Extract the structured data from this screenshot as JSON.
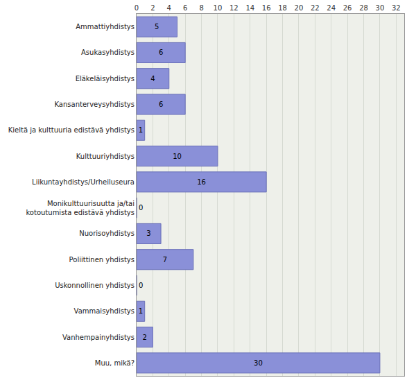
{
  "chart_data": {
    "type": "bar",
    "orientation": "horizontal",
    "categories": [
      "Ammattiyhdistys",
      "Asukasyhdistys",
      "Eläkeläisyhdistys",
      "Kansanterveysyhdistys",
      "Kieltä ja kulttuuria edistävä yhdistys",
      "Kulttuuriyhdistys",
      "Liikuntayhdistys/Urheiluseura",
      "Monikulttuurisuutta ja/tai kotoutumista edistävä yhdistys",
      "Nuorisoyhdistys",
      "Poliittinen yhdistys",
      "Uskonnollinen yhdistys",
      "Vammaisyhdistys",
      "Vanhempainyhdistys",
      "Muu, mikä?"
    ],
    "values": [
      5,
      6,
      4,
      6,
      1,
      10,
      16,
      0,
      3,
      7,
      0,
      1,
      2,
      30
    ],
    "color": "#8a90d8",
    "xlim": [
      0,
      33
    ],
    "xticks": [
      0,
      2,
      4,
      6,
      8,
      10,
      12,
      14,
      16,
      18,
      20,
      22,
      24,
      26,
      28,
      30,
      32
    ],
    "grid": true,
    "data_labels": true
  }
}
